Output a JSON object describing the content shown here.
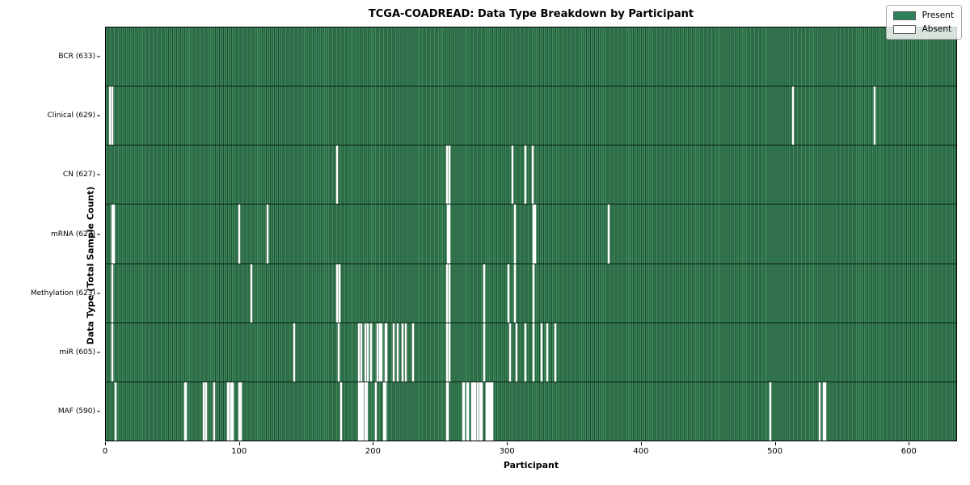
{
  "title": "TCGA-COADREAD: Data Type Breakdown by Participant",
  "chart_data": {
    "type": "heatmap",
    "title": "TCGA-COADREAD: Data Type Breakdown by Participant",
    "xlabel": "Participant",
    "ylabel": "Data Type (Total Sample Count)",
    "xlim": [
      0,
      636
    ],
    "x_ticks": [
      0,
      100,
      200,
      300,
      400,
      500,
      600
    ],
    "n_participants": 633,
    "grid": false,
    "legend_position": "upper right",
    "legend": [
      {
        "label": "Present",
        "color": "#2e8057"
      },
      {
        "label": "Absent",
        "color": "#ffffff"
      }
    ],
    "colors": {
      "present_light": "#3e8a5d",
      "present_dark": "#1c4f31",
      "absent": "#ffffff"
    },
    "rows": [
      {
        "label": "BCR (633)",
        "present_count": 633,
        "absent_participants": []
      },
      {
        "label": "Clinical (629)",
        "present_count": 629,
        "absent_participants": [
          3,
          5,
          514,
          575
        ]
      },
      {
        "label": "CN (627)",
        "present_count": 627,
        "absent_participants": [
          173,
          255,
          257,
          304,
          314,
          319
        ]
      },
      {
        "label": "mRNA (623)",
        "present_count": 623,
        "absent_participants": [
          5,
          6,
          100,
          121,
          256,
          257,
          306,
          320,
          321,
          376
        ]
      },
      {
        "label": "Methylation (623)",
        "present_count": 623,
        "absent_participants": [
          5,
          109,
          173,
          175,
          255,
          257,
          283,
          301,
          306,
          320
        ]
      },
      {
        "label": "miR (605)",
        "present_count": 605,
        "absent_participants": [
          5,
          141,
          174,
          189,
          191,
          194,
          196,
          198,
          203,
          205,
          206,
          209,
          210,
          215,
          218,
          222,
          224,
          230,
          255,
          257,
          283,
          302,
          307,
          314,
          320,
          326,
          330,
          336
        ]
      },
      {
        "label": "MAF (590)",
        "present_count": 590,
        "absent_participants": [
          7,
          59,
          60,
          73,
          75,
          81,
          91,
          92,
          94,
          95,
          100,
          101,
          176,
          189,
          190,
          191,
          192,
          194,
          195,
          202,
          208,
          209,
          255,
          256,
          267,
          268,
          270,
          271,
          274,
          275,
          276,
          278,
          280,
          281,
          285,
          286,
          287,
          288,
          289,
          497,
          534,
          537,
          538
        ]
      }
    ]
  }
}
